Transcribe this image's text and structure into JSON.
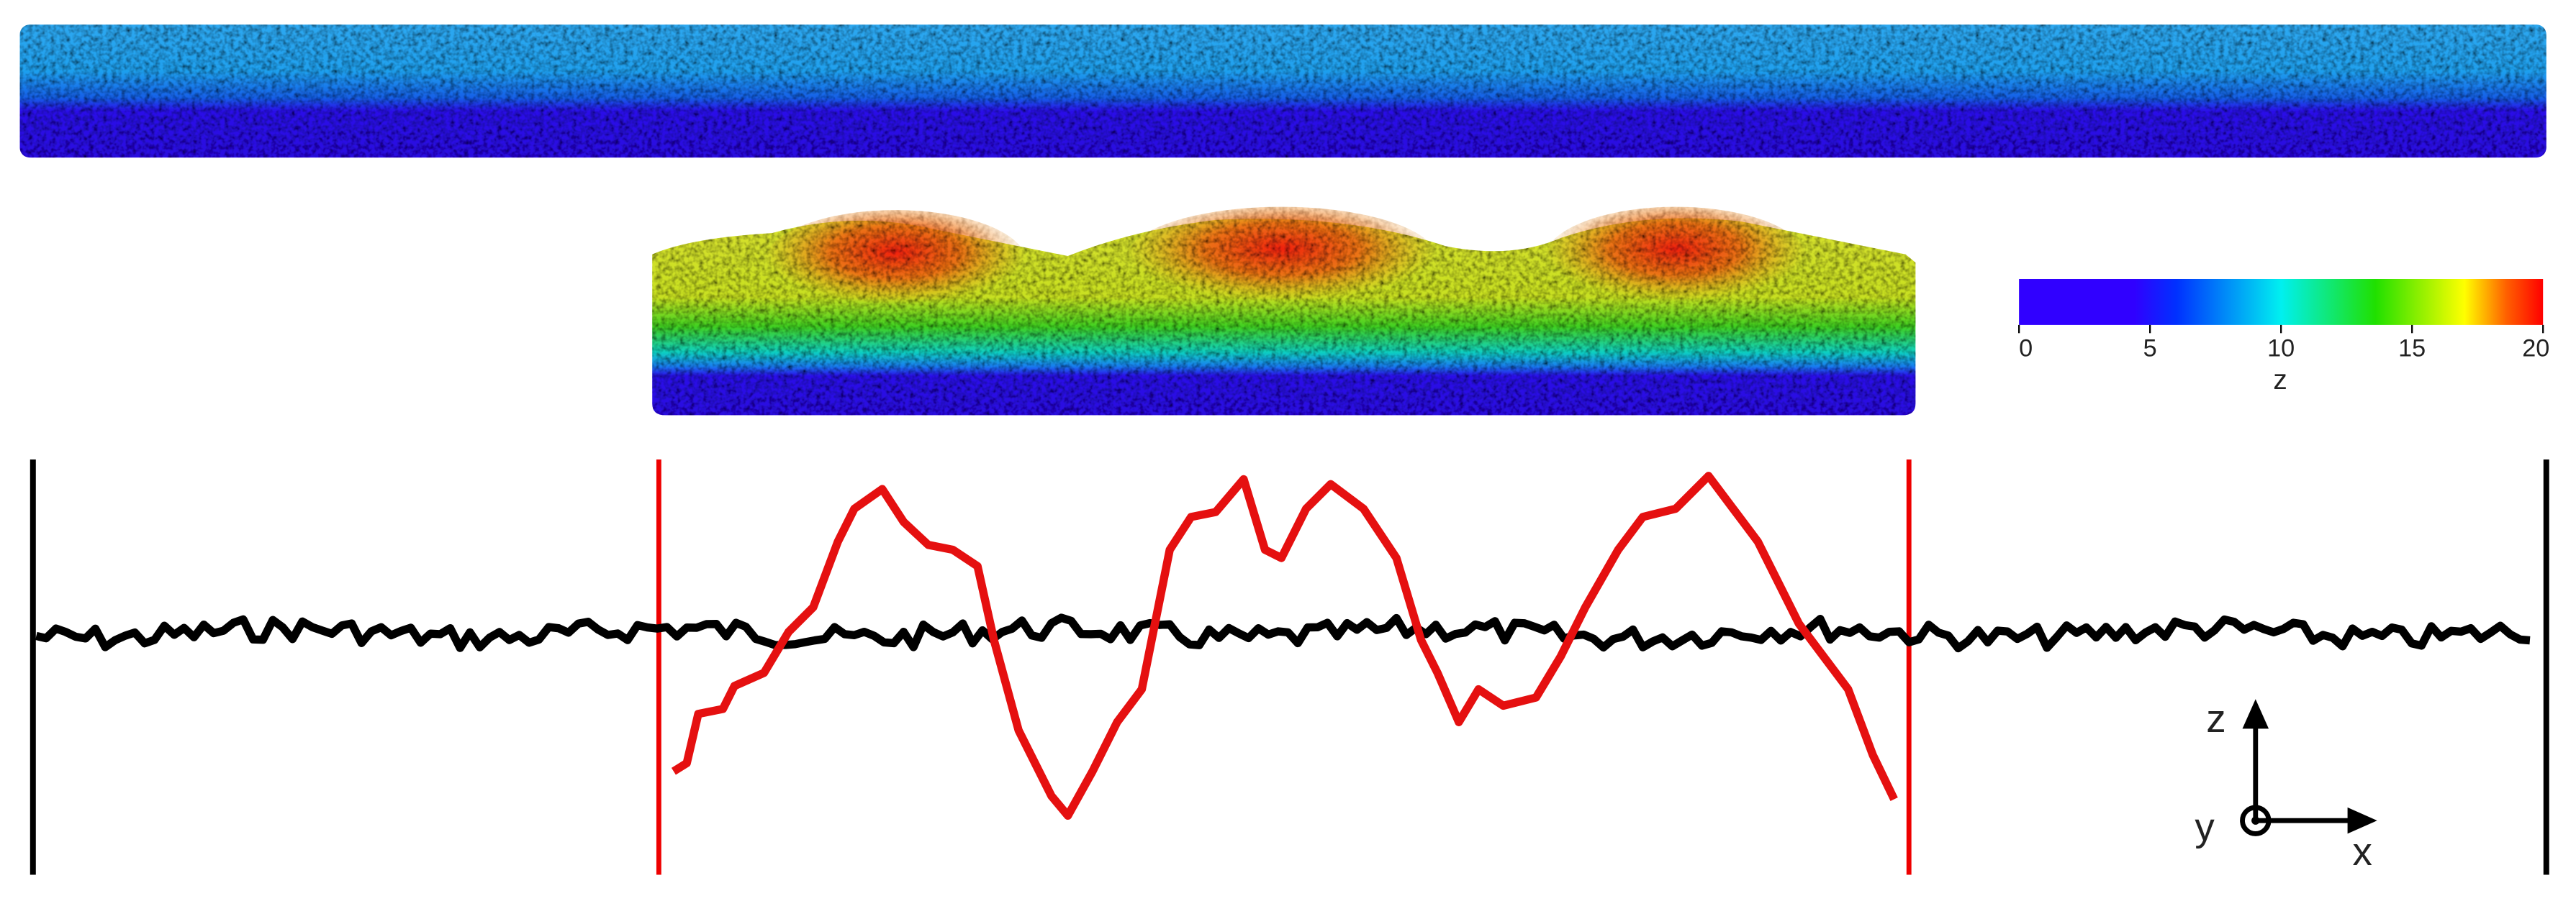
{
  "colorbar": {
    "label": "z",
    "range": [
      0,
      20
    ],
    "ticks": [
      0,
      5,
      10,
      15,
      20
    ]
  },
  "axes": {
    "vertical": "z",
    "depth": "y",
    "horizontal": "x"
  }
}
